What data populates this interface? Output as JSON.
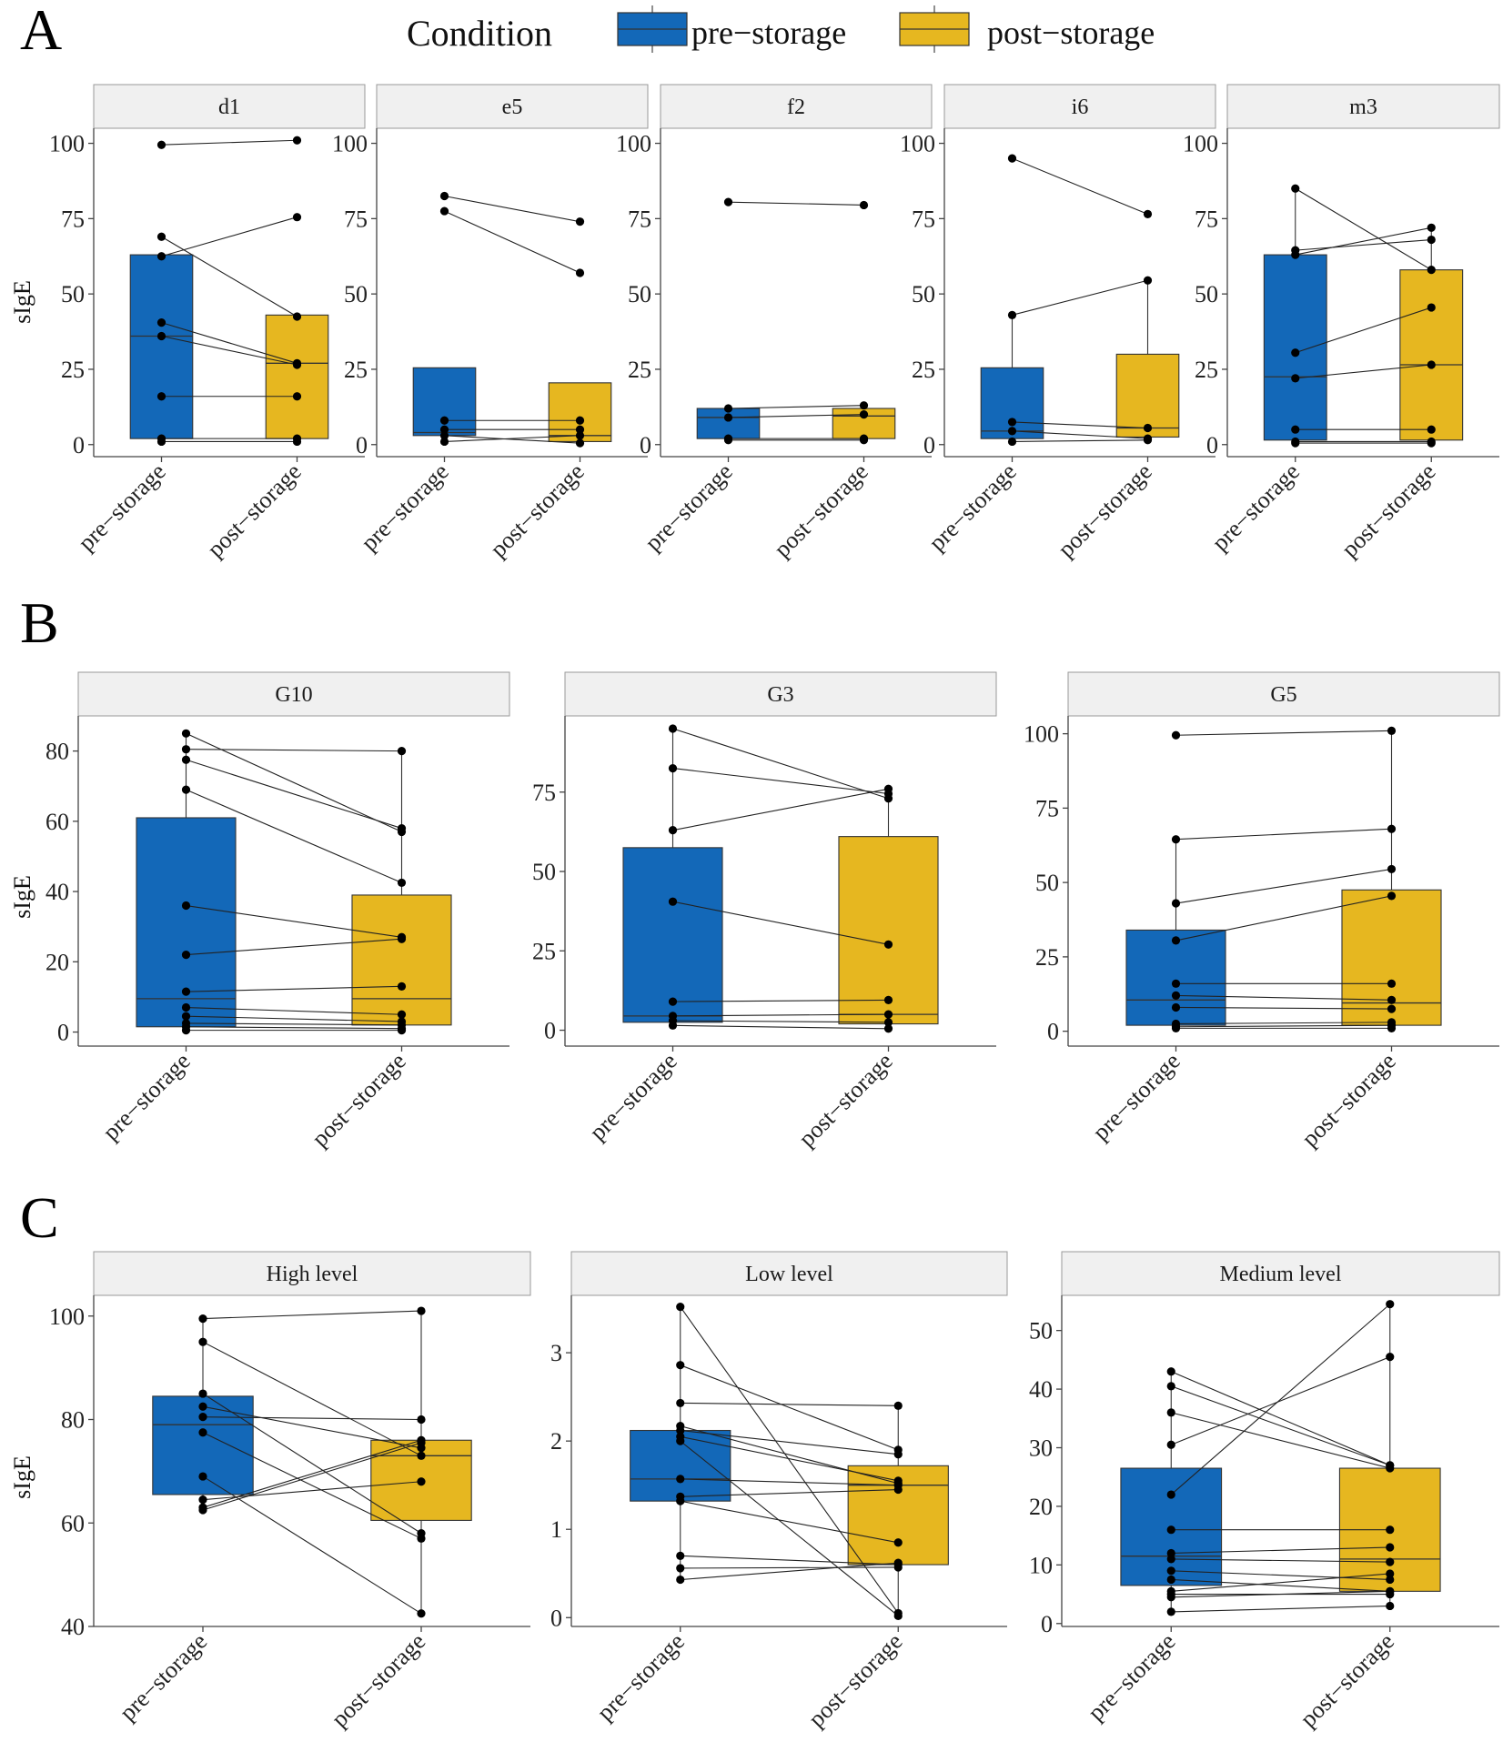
{
  "legend": {
    "title": "Condition",
    "items": [
      {
        "label": "pre−storage",
        "color": "#1368b8"
      },
      {
        "label": "post−storage",
        "color": "#e6b720"
      }
    ]
  },
  "colors": {
    "pre": "#1368b8",
    "post": "#e6b720",
    "strip": "#f0f0f0",
    "point": "#000000"
  },
  "categories": [
    "pre−storage",
    "post−storage"
  ],
  "chart_data": [
    {
      "type": "box",
      "panel": "A",
      "ylabel": "sIgE",
      "ylim": [
        -4,
        105
      ],
      "yticks": [
        0,
        25,
        50,
        75,
        100
      ],
      "facets": [
        {
          "title": "d1",
          "boxes": [
            {
              "q1": 2,
              "median": 36,
              "q3": 63,
              "lo": 2,
              "hi": 63
            },
            {
              "q1": 2,
              "median": 27,
              "q3": 43,
              "lo": 2,
              "hi": 43
            }
          ],
          "pairs": [
            [
              99.5,
              101
            ],
            [
              69,
              42.5
            ],
            [
              62.5,
              75.5
            ],
            [
              40.5,
              27
            ],
            [
              36,
              26.5
            ],
            [
              16,
              16
            ],
            [
              2,
              2
            ],
            [
              1,
              1
            ]
          ]
        },
        {
          "title": "e5",
          "boxes": [
            {
              "q1": 3,
              "median": 4,
              "q3": 25.5,
              "lo": 1,
              "hi": 25.5
            },
            {
              "q1": 1,
              "median": 3,
              "q3": 20.5,
              "lo": 0,
              "hi": 20.5
            }
          ],
          "pairs": [
            [
              82.5,
              74
            ],
            [
              77.5,
              57
            ],
            [
              8,
              8
            ],
            [
              5,
              5
            ],
            [
              3,
              0.5
            ],
            [
              1,
              3
            ]
          ]
        },
        {
          "title": "f2",
          "boxes": [
            {
              "q1": 2,
              "median": 9,
              "q3": 12,
              "lo": 1.5,
              "hi": 12
            },
            {
              "q1": 2,
              "median": 9.5,
              "q3": 12,
              "lo": 1.5,
              "hi": 13
            }
          ],
          "pairs": [
            [
              80.5,
              79.5
            ],
            [
              12,
              13
            ],
            [
              9,
              10
            ],
            [
              2,
              2
            ],
            [
              1.5,
              1.5
            ]
          ]
        },
        {
          "title": "i6",
          "boxes": [
            {
              "q1": 2,
              "median": 4.5,
              "q3": 25.5,
              "lo": 1,
              "hi": 43
            },
            {
              "q1": 2.5,
              "median": 5.5,
              "q3": 30,
              "lo": 1.5,
              "hi": 54.5
            }
          ],
          "pairs": [
            [
              95,
              76.5
            ],
            [
              43,
              54.5
            ],
            [
              7.5,
              5.5
            ],
            [
              4.5,
              2
            ],
            [
              1,
              1.5
            ]
          ]
        },
        {
          "title": "m3",
          "boxes": [
            {
              "q1": 1.5,
              "median": 22.5,
              "q3": 63,
              "lo": 0.5,
              "hi": 85
            },
            {
              "q1": 1.5,
              "median": 26.5,
              "q3": 58,
              "lo": 0.5,
              "hi": 72
            }
          ],
          "pairs": [
            [
              85,
              58
            ],
            [
              64.5,
              68
            ],
            [
              63,
              72
            ],
            [
              30.5,
              45.5
            ],
            [
              22,
              26.5
            ],
            [
              5,
              5
            ],
            [
              1,
              1
            ],
            [
              0.5,
              0.5
            ]
          ]
        }
      ]
    },
    {
      "type": "box",
      "panel": "B",
      "ylabel": "sIgE",
      "facets": [
        {
          "title": "G10",
          "ylim": [
            -4,
            90
          ],
          "yticks": [
            0,
            20,
            40,
            60,
            80
          ],
          "boxes": [
            {
              "q1": 1.5,
              "median": 9.5,
              "q3": 61,
              "lo": 0.5,
              "hi": 85
            },
            {
              "q1": 2,
              "median": 9.5,
              "q3": 39,
              "lo": 0.5,
              "hi": 80
            }
          ],
          "pairs": [
            [
              85,
              57
            ],
            [
              80.5,
              80
            ],
            [
              77.5,
              58
            ],
            [
              69,
              42.5
            ],
            [
              36,
              27
            ],
            [
              22,
              26.5
            ],
            [
              11.5,
              13
            ],
            [
              7,
              5
            ],
            [
              4.5,
              3
            ],
            [
              2.5,
              2
            ],
            [
              1.5,
              1
            ],
            [
              0.5,
              0.5
            ]
          ]
        },
        {
          "title": "G3",
          "ylim": [
            -5,
            99
          ],
          "yticks": [
            0,
            25,
            50,
            75
          ],
          "boxes": [
            {
              "q1": 2.5,
              "median": 4.5,
              "q3": 57.5,
              "lo": 1,
              "hi": 95
            },
            {
              "q1": 2,
              "median": 5,
              "q3": 61,
              "lo": 0,
              "hi": 76
            }
          ],
          "pairs": [
            [
              95,
              73
            ],
            [
              82.5,
              74.5
            ],
            [
              63,
              76
            ],
            [
              40.5,
              27
            ],
            [
              9,
              9.5
            ],
            [
              4.5,
              5
            ],
            [
              3,
              2.5
            ],
            [
              1.5,
              0.5
            ]
          ]
        },
        {
          "title": "G5",
          "ylim": [
            -5,
            106
          ],
          "yticks": [
            0,
            25,
            50,
            75,
            100
          ],
          "boxes": [
            {
              "q1": 2,
              "median": 10.5,
              "q3": 34,
              "lo": 1,
              "hi": 64.5
            },
            {
              "q1": 2,
              "median": 9.5,
              "q3": 47.5,
              "lo": 1,
              "hi": 101
            }
          ],
          "pairs": [
            [
              99.5,
              101
            ],
            [
              64.5,
              68
            ],
            [
              43,
              54.5
            ],
            [
              30.5,
              45.5
            ],
            [
              16,
              16
            ],
            [
              12,
              10.5
            ],
            [
              8,
              7.5
            ],
            [
              2.5,
              3
            ],
            [
              1.5,
              2
            ],
            [
              1,
              1
            ]
          ]
        }
      ]
    },
    {
      "type": "box",
      "panel": "C",
      "ylabel": "sIgE",
      "facets": [
        {
          "title": "High level",
          "ylim": [
            40,
            104
          ],
          "yticks": [
            40,
            60,
            80,
            100
          ],
          "boxes": [
            {
              "q1": 65.5,
              "median": 79,
              "q3": 84.5,
              "lo": 62.5,
              "hi": 99.5
            },
            {
              "q1": 60.5,
              "median": 73,
              "q3": 76,
              "lo": 42.5,
              "hi": 101
            }
          ],
          "pairs": [
            [
              99.5,
              101
            ],
            [
              95,
              73
            ],
            [
              85,
              58
            ],
            [
              82.5,
              74.5
            ],
            [
              80.5,
              80
            ],
            [
              77.5,
              57
            ],
            [
              69,
              42.5
            ],
            [
              64.5,
              68
            ],
            [
              63,
              76
            ],
            [
              62.5,
              75.5
            ]
          ]
        },
        {
          "title": "Low level",
          "ylim": [
            -0.1,
            3.65
          ],
          "yticks": [
            0,
            1,
            2,
            3
          ],
          "boxes": [
            {
              "q1": 1.32,
              "median": 1.57,
              "q3": 2.12,
              "lo": 0.43,
              "hi": 3.52
            },
            {
              "q1": 0.6,
              "median": 1.5,
              "q3": 1.72,
              "lo": 0.02,
              "hi": 2.4
            }
          ],
          "pairs": [
            [
              3.52,
              0.05
            ],
            [
              2.86,
              1.9
            ],
            [
              2.43,
              2.4
            ],
            [
              2.17,
              1.52
            ],
            [
              2.12,
              1.85
            ],
            [
              2.05,
              1.55
            ],
            [
              2.0,
              0.02
            ],
            [
              1.57,
              1.5
            ],
            [
              1.37,
              1.45
            ],
            [
              1.32,
              0.85
            ],
            [
              0.7,
              0.6
            ],
            [
              0.56,
              0.57
            ],
            [
              0.43,
              0.62
            ]
          ]
        },
        {
          "title": "Medium level",
          "ylim": [
            -0.5,
            56
          ],
          "yticks": [
            0,
            10,
            20,
            30,
            40,
            50
          ],
          "boxes": [
            {
              "q1": 6.5,
              "median": 11.5,
              "q3": 26.5,
              "lo": 2,
              "hi": 43
            },
            {
              "q1": 5.5,
              "median": 11,
              "q3": 26.5,
              "lo": 3,
              "hi": 54.5
            }
          ],
          "pairs": [
            [
              43,
              27
            ],
            [
              40.5,
              27
            ],
            [
              36,
              26.5
            ],
            [
              30.5,
              45.5
            ],
            [
              22,
              54.5
            ],
            [
              16,
              16
            ],
            [
              12,
              13
            ],
            [
              11,
              10.5
            ],
            [
              9,
              7.5
            ],
            [
              7.5,
              5.5
            ],
            [
              5.5,
              8.5
            ],
            [
              5,
              5
            ],
            [
              4.5,
              5.5
            ],
            [
              2,
              3
            ]
          ]
        }
      ]
    }
  ]
}
